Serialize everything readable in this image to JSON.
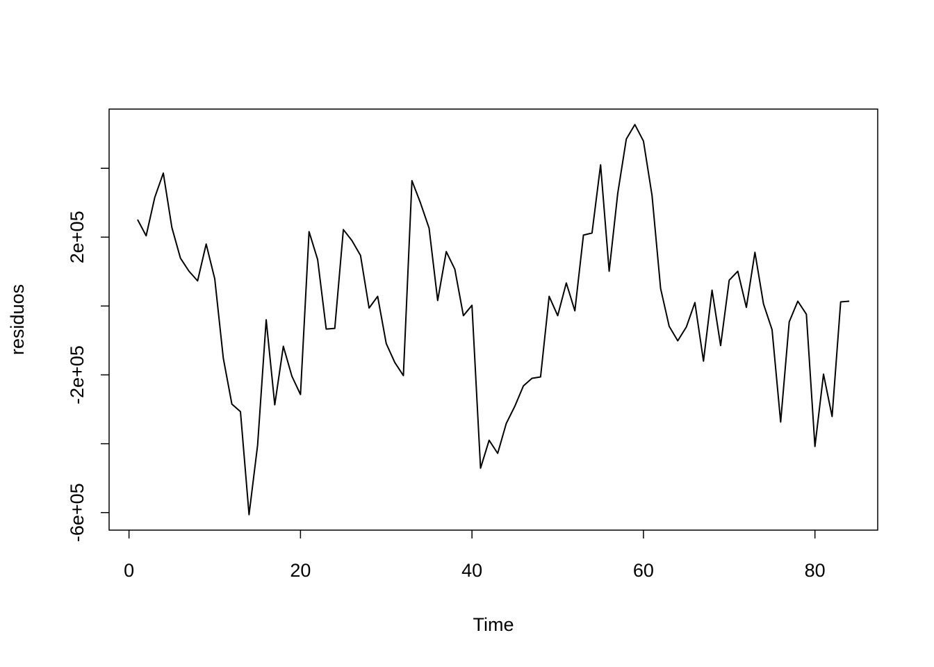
{
  "chart_data": {
    "type": "line",
    "x_label": "Time",
    "y_label": "residuos",
    "x": [
      1,
      2,
      3,
      4,
      5,
      6,
      7,
      8,
      9,
      10,
      11,
      12,
      13,
      14,
      15,
      16,
      17,
      18,
      19,
      20,
      21,
      22,
      23,
      24,
      25,
      26,
      27,
      28,
      29,
      30,
      31,
      32,
      33,
      34,
      35,
      36,
      37,
      38,
      39,
      40,
      41,
      42,
      43,
      44,
      45,
      46,
      47,
      48,
      49,
      50,
      51,
      52,
      53,
      54,
      55,
      56,
      57,
      58,
      59,
      60,
      61,
      62,
      63,
      64,
      65,
      66,
      67,
      68,
      69,
      70,
      71,
      72,
      73,
      74,
      75,
      76,
      77,
      78,
      79,
      80,
      81,
      82,
      83,
      84
    ],
    "series": [
      {
        "color": "#000000",
        "values": [
          251000,
          204000,
          315000,
          386000,
          228000,
          139000,
          101000,
          73000,
          180000,
          79000,
          -152000,
          -285000,
          -307000,
          -606000,
          -404000,
          -40000,
          -287000,
          -117000,
          -204000,
          -257000,
          216000,
          135000,
          -67000,
          -65000,
          222000,
          190000,
          147000,
          -6000,
          28000,
          -109000,
          -164000,
          -202000,
          364000,
          299000,
          226000,
          16000,
          158000,
          107000,
          -28000,
          2000,
          -471000,
          -390000,
          -428000,
          -341000,
          -291000,
          -232000,
          -210000,
          -206000,
          28000,
          -28000,
          67000,
          -14000,
          206000,
          212000,
          410000,
          101000,
          327000,
          485000,
          527000,
          479000,
          321000,
          51000,
          -59000,
          -101000,
          -61000,
          10000,
          -160000,
          46000,
          -115000,
          75000,
          101000,
          -4000,
          156000,
          6000,
          -69000,
          -337000,
          -46000,
          14000,
          -24000,
          -408000,
          -198000,
          -321000,
          12000,
          14000
        ]
      }
    ],
    "xlim": [
      -2.32,
      87.32
    ],
    "xticks": [
      0,
      20,
      40,
      60,
      80
    ],
    "ylim": [
      -651000,
      572000
    ],
    "yticks": [
      {
        "value": -600000,
        "label": "-6e+05"
      },
      {
        "value": -400000,
        "label": null
      },
      {
        "value": -200000,
        "label": "-2e+05"
      },
      {
        "value": 0,
        "label": null
      },
      {
        "value": 200000,
        "label": "2e+05"
      },
      {
        "value": 400000,
        "label": null
      }
    ]
  }
}
